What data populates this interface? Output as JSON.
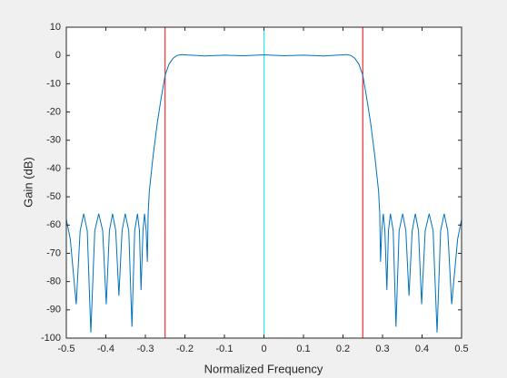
{
  "chart_data": {
    "type": "line",
    "xlabel": "Normalized Frequency",
    "ylabel": "Gain (dB)",
    "x": [
      -0.5,
      -0.49,
      -0.475,
      -0.465,
      -0.456,
      -0.447,
      -0.438,
      -0.428,
      -0.418,
      -0.408,
      -0.399,
      -0.391,
      -0.383,
      -0.375,
      -0.367,
      -0.359,
      -0.351,
      -0.342,
      -0.334,
      -0.327,
      -0.32,
      -0.315,
      -0.311,
      -0.306,
      -0.302,
      -0.298,
      -0.295,
      -0.293,
      -0.29,
      -0.28,
      -0.27,
      -0.26,
      -0.25,
      -0.24,
      -0.23,
      -0.22,
      -0.21,
      -0.2,
      -0.15,
      -0.1,
      -0.05,
      0,
      0.05,
      0.1,
      0.15,
      0.2,
      0.21,
      0.22,
      0.23,
      0.24,
      0.25,
      0.26,
      0.27,
      0.28,
      0.29,
      0.293,
      0.295,
      0.298,
      0.302,
      0.306,
      0.311,
      0.315,
      0.32,
      0.327,
      0.334,
      0.342,
      0.351,
      0.359,
      0.367,
      0.375,
      0.383,
      0.391,
      0.399,
      0.408,
      0.418,
      0.428,
      0.438,
      0.447,
      0.456,
      0.465,
      0.475,
      0.49,
      0.5
    ],
    "series": [
      {
        "color": "#0072bd",
        "values": [
          -58,
          -65,
          -88,
          -62,
          -56,
          -62,
          -98,
          -62,
          -56,
          -62,
          -88,
          -62,
          -56,
          -62,
          -85,
          -62,
          -56,
          -62,
          -96,
          -62,
          -56,
          -62,
          -83,
          -62,
          -56,
          -62,
          -73,
          -56,
          -48,
          -35,
          -24,
          -15,
          -7,
          -3,
          -1,
          0,
          0.3,
          0.2,
          -0.2,
          0.1,
          -0.1,
          0.2,
          -0.1,
          0.1,
          -0.2,
          0.2,
          0.3,
          0,
          -1,
          -3,
          -7,
          -15,
          -24,
          -35,
          -48,
          -56,
          -73,
          -62,
          -56,
          -62,
          -83,
          -62,
          -56,
          -62,
          -96,
          -62,
          -56,
          -62,
          -85,
          -62,
          -56,
          -62,
          -88,
          -62,
          -56,
          -62,
          -98,
          -62,
          -56,
          -62,
          -88,
          -65,
          -58
        ]
      }
    ],
    "vlines": [
      {
        "x": -0.25,
        "color": "#ff0000"
      },
      {
        "x": 0,
        "color": "#00ffff"
      },
      {
        "x": 0.25,
        "color": "#ff0000"
      }
    ],
    "xlim": [
      -0.5,
      0.5
    ],
    "xticks": [
      -0.5,
      -0.4,
      -0.3,
      -0.2,
      -0.1,
      0,
      0.1,
      0.2,
      0.3,
      0.4,
      0.5
    ],
    "ylim": [
      -100,
      10
    ],
    "yticks": [
      10,
      0,
      -10,
      -20,
      -30,
      -40,
      -50,
      -60,
      -70,
      -80,
      -90,
      -100
    ]
  }
}
